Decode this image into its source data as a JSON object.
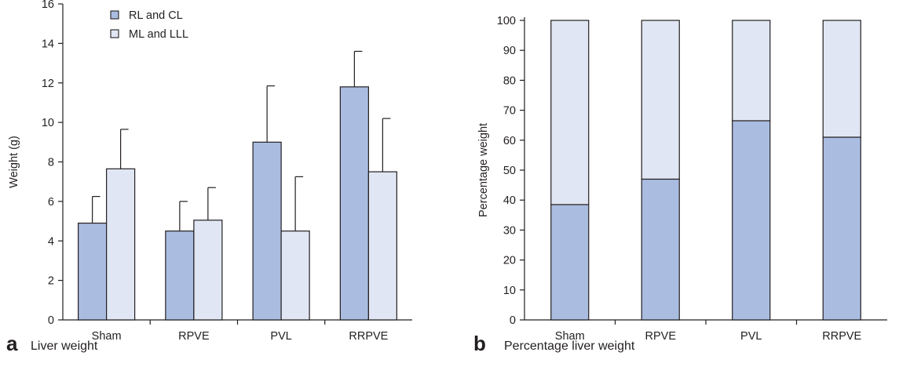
{
  "chart_data": [
    {
      "type": "bar",
      "panel_label": "a",
      "title": "Liver weight",
      "xlabel": "",
      "ylabel": "Weight (g)",
      "ylim": [
        0,
        16
      ],
      "yticks": [
        0,
        2,
        4,
        6,
        8,
        10,
        12,
        14,
        16
      ],
      "categories": [
        "Sham",
        "RPVE",
        "PVL",
        "RRPVE"
      ],
      "series": [
        {
          "name": "RL and CL",
          "color": "#aabde1",
          "values": [
            4.9,
            4.5,
            9.0,
            11.8
          ],
          "error": [
            1.35,
            1.5,
            2.85,
            1.8
          ]
        },
        {
          "name": "ML and LLL",
          "color": "#e0e6f3",
          "values": [
            7.65,
            5.05,
            4.5,
            7.5
          ],
          "error": [
            2.0,
            1.65,
            2.75,
            2.7
          ]
        }
      ],
      "legend_position": "top-left",
      "grid": false
    },
    {
      "type": "bar",
      "stacked": true,
      "panel_label": "b",
      "title": "Percentage liver weight",
      "xlabel": "",
      "ylabel": "Percentage weight",
      "ylim": [
        0,
        100
      ],
      "yticks": [
        0,
        10,
        20,
        30,
        40,
        50,
        60,
        70,
        80,
        90,
        100
      ],
      "categories": [
        "Sham",
        "RPVE",
        "PVL",
        "RRPVE"
      ],
      "series": [
        {
          "color": "#aabde1",
          "values": [
            38.5,
            47,
            66.5,
            61
          ]
        },
        {
          "color": "#e0e6f3",
          "values": [
            61.5,
            53,
            33.5,
            39
          ]
        }
      ],
      "grid": false
    }
  ]
}
